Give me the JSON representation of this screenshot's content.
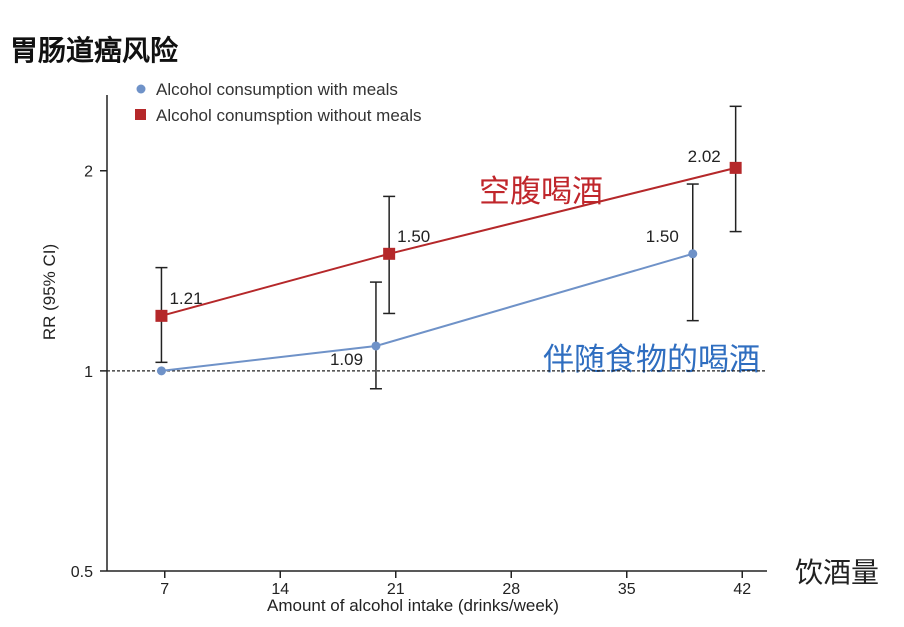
{
  "page_title": "胃肠道癌风险",
  "x_unit_label": "饮酒量",
  "annotations": {
    "fasting": "空腹喝酒",
    "with_food": "伴随食物的喝酒"
  },
  "colors": {
    "red": "#b5282a",
    "blue": "#6f92c8",
    "annotation_red": "#c0262b",
    "annotation_blue": "#2f6ec0",
    "axis": "#222222"
  },
  "chart_data": {
    "type": "line",
    "scale_y": "log",
    "xlabel": "Amount of alcohol intake (drinks/week)",
    "ylabel": "RR (95% CI)",
    "xlim": [
      3.5,
      43.5
    ],
    "ylim": [
      0.5,
      2.6
    ],
    "x_ticks": [
      7,
      14,
      21,
      28,
      35,
      42
    ],
    "y_ticks": [
      0.5,
      1,
      2
    ],
    "x_tick_labels": [
      "7",
      "14",
      "21",
      "28",
      "35",
      "42"
    ],
    "y_tick_labels": [
      "0.5",
      "1",
      "2"
    ],
    "reference_line_y": 1,
    "legend_position": "top-left",
    "series": [
      {
        "name": "Alcohol consumption with meals",
        "marker": "circle",
        "color": "#6f92c8",
        "points": [
          {
            "x": 6.8,
            "y": 1.0,
            "label": ""
          },
          {
            "x": 19.8,
            "y": 1.09,
            "label": "1.09",
            "ci": [
              0.94,
              1.36
            ]
          },
          {
            "x": 39.0,
            "y": 1.5,
            "label": "1.50",
            "ci": [
              1.19,
              1.91
            ]
          }
        ]
      },
      {
        "name": "Alcohol conumsption without meals",
        "marker": "square",
        "color": "#b5282a",
        "points": [
          {
            "x": 6.8,
            "y": 1.21,
            "label": "1.21",
            "ci": [
              1.03,
              1.43
            ]
          },
          {
            "x": 20.6,
            "y": 1.5,
            "label": "1.50",
            "ci": [
              1.22,
              1.83
            ]
          },
          {
            "x": 41.6,
            "y": 2.02,
            "label": "2.02",
            "ci": [
              1.62,
              2.5
            ]
          }
        ]
      }
    ]
  }
}
